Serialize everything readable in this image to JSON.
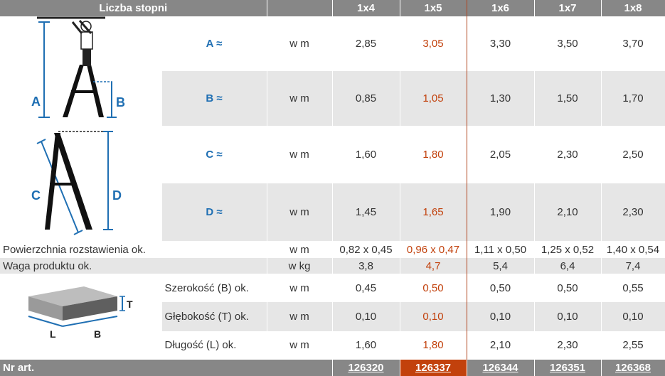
{
  "header": {
    "label": "Liczba stopni",
    "cols": [
      "1x4",
      "1x5",
      "1x6",
      "1x7",
      "1x8"
    ]
  },
  "dim_rows": [
    {
      "label": "A ≈",
      "unit": "w m",
      "values": [
        "2,85",
        "3,05",
        "3,30",
        "3,50",
        "3,70"
      ]
    },
    {
      "label": "B ≈",
      "unit": "w m",
      "values": [
        "0,85",
        "1,05",
        "1,30",
        "1,50",
        "1,70"
      ]
    },
    {
      "label": "C ≈",
      "unit": "w m",
      "values": [
        "1,60",
        "1,80",
        "2,05",
        "2,30",
        "2,50"
      ]
    },
    {
      "label": "D ≈",
      "unit": "w m",
      "values": [
        "1,45",
        "1,65",
        "1,90",
        "2,10",
        "2,30"
      ]
    }
  ],
  "surface": {
    "label": "Powierzchnia rozstawienia ok.",
    "unit": "w m",
    "values": [
      "0,82 x 0,45",
      "0,96 x 0,47",
      "1,11 x 0,50",
      "1,25 x 0,52",
      "1,40 x 0,54"
    ]
  },
  "weight": {
    "label": "Waga produktu ok.",
    "unit": "w kg",
    "values": [
      "3,8",
      "4,7",
      "5,4",
      "6,4",
      "7,4"
    ]
  },
  "package_rows": [
    {
      "label": "Szerokość (B) ok.",
      "unit": "w m",
      "values": [
        "0,45",
        "0,50",
        "0,50",
        "0,50",
        "0,55"
      ]
    },
    {
      "label": "Głębokość (T) ok.",
      "unit": "w m",
      "values": [
        "0,10",
        "0,10",
        "0,10",
        "0,10",
        "0,10"
      ]
    },
    {
      "label": "Długość (L) ok.",
      "unit": "w m",
      "values": [
        "1,60",
        "1,80",
        "2,10",
        "2,30",
        "2,55"
      ]
    }
  ],
  "footer": {
    "label": "Nr art.",
    "articles": [
      "126320",
      "126337",
      "126344",
      "126351",
      "126368"
    ]
  },
  "diagram_labels": {
    "ladder_open": {
      "a": "A",
      "b": "B"
    },
    "ladder_side": {
      "c": "C",
      "d": "D"
    },
    "box": {
      "t": "T",
      "l": "L",
      "b": "B"
    }
  },
  "colors": {
    "header_bg": "#878787",
    "highlight": "#c2410c",
    "dim_label": "#1f6fb3",
    "row_gray": "#e6e6e6"
  }
}
